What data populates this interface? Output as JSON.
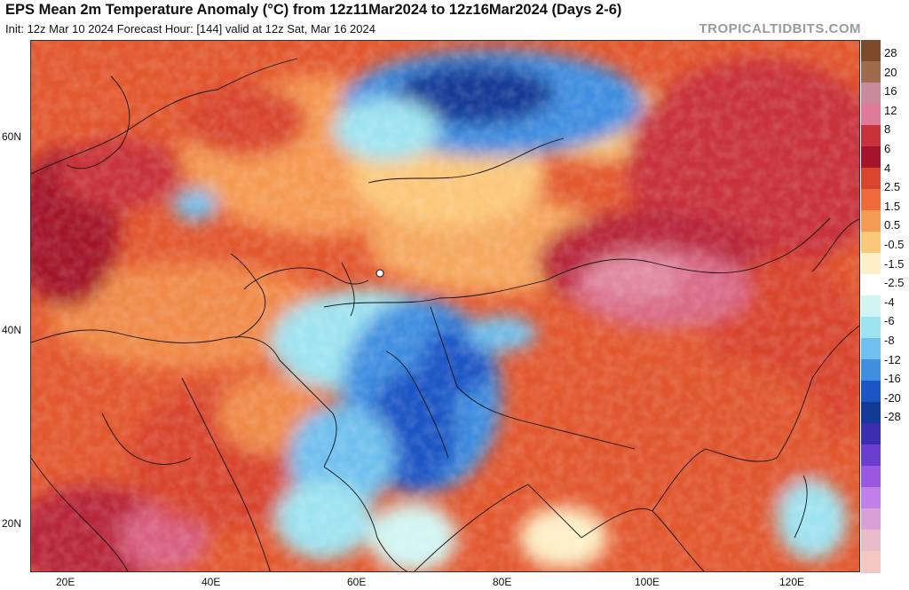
{
  "header": {
    "title": "EPS Mean 2m Temperature Anomaly (°C) from 12z11Mar2024 to 12z16Mar2024 (Days 2-6)",
    "subtitle": "Init: 12z Mar 10 2024   Forecast Hour: [144]   valid at 12z Sat, Mar 16 2024",
    "brand": "TROPICALTIDBITS.COM"
  },
  "map": {
    "lat_labels": [
      "60N",
      "40N",
      "20N"
    ],
    "lon_labels": [
      "20E",
      "40E",
      "60E",
      "80E",
      "100E",
      "120E"
    ]
  },
  "colorbar": {
    "labels": [
      "28",
      "20",
      "16",
      "12",
      "8",
      "6",
      "4",
      "2.5",
      "1.5",
      "0.5",
      "-0.5",
      "-1.5",
      "-2.5",
      "-4",
      "-6",
      "-8",
      "-12",
      "-16",
      "-20",
      "-28"
    ],
    "colors": [
      "#7a4a2a",
      "#9e6b4e",
      "#c98a9e",
      "#e07a9a",
      "#c8323a",
      "#a3152a",
      "#d8452e",
      "#ef6a3a",
      "#f59a52",
      "#fbc77a",
      "#fdf0c8",
      "#ffffff",
      "#d2f5f3",
      "#9ee3f0",
      "#6fc0ee",
      "#3f8ee0",
      "#1c55c4",
      "#123a96",
      "#3a2db0",
      "#6a3fd0",
      "#9a58e0",
      "#c080e8",
      "#d9a0d8",
      "#e8bcc8",
      "#f4c8c0"
    ]
  },
  "colors": {
    "land_warm": "#d8452e",
    "land_hot": "#a3152a",
    "anomaly_pink": "#d86080",
    "cold_deep": "#123a96",
    "cold_mid": "#3f8ee0",
    "cold_light": "#9ee3f0",
    "neutral": "#ffffff"
  }
}
